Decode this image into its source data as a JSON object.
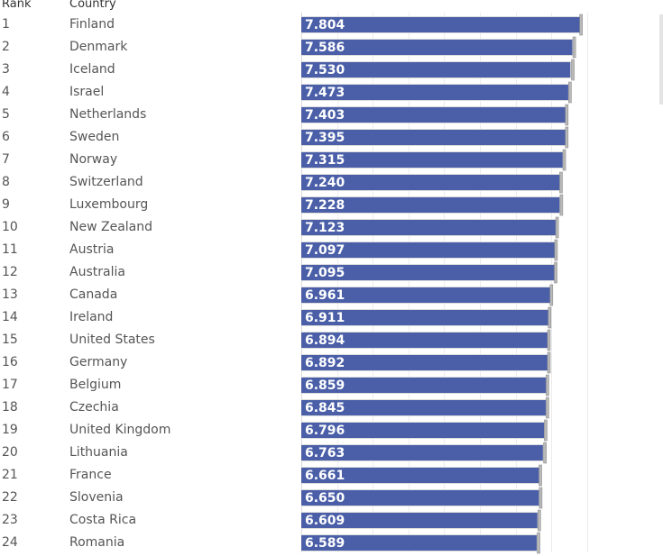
{
  "header": {
    "rank_label": "Rank",
    "country_label": "Country"
  },
  "chart_data": {
    "type": "bar",
    "orientation": "horizontal",
    "title": "",
    "xlabel": "",
    "ylabel": "Country",
    "xlim": [
      0,
      8
    ],
    "grid": true,
    "bar_color": "#4a5fa8",
    "interval_color": "#b9b9b9",
    "label_color": "#ffffff",
    "rows": [
      {
        "rank": "1",
        "country": "Finland",
        "value": 7.804,
        "label": "7.804",
        "upper": 7.87
      },
      {
        "rank": "2",
        "country": "Denmark",
        "value": 7.586,
        "label": "7.586",
        "upper": 7.68
      },
      {
        "rank": "3",
        "country": "Iceland",
        "value": 7.53,
        "label": "7.530",
        "upper": 7.64
      },
      {
        "rank": "4",
        "country": "Israel",
        "value": 7.473,
        "label": "7.473",
        "upper": 7.56
      },
      {
        "rank": "5",
        "country": "Netherlands",
        "value": 7.403,
        "label": "7.403",
        "upper": 7.47
      },
      {
        "rank": "6",
        "country": "Sweden",
        "value": 7.395,
        "label": "7.395",
        "upper": 7.47
      },
      {
        "rank": "7",
        "country": "Norway",
        "value": 7.315,
        "label": "7.315",
        "upper": 7.4
      },
      {
        "rank": "8",
        "country": "Switzerland",
        "value": 7.24,
        "label": "7.240",
        "upper": 7.31
      },
      {
        "rank": "9",
        "country": "Luxembourg",
        "value": 7.228,
        "label": "7.228",
        "upper": 7.32
      },
      {
        "rank": "10",
        "country": "New Zealand",
        "value": 7.123,
        "label": "7.123",
        "upper": 7.2
      },
      {
        "rank": "11",
        "country": "Austria",
        "value": 7.097,
        "label": "7.097",
        "upper": 7.17
      },
      {
        "rank": "12",
        "country": "Australia",
        "value": 7.095,
        "label": "7.095",
        "upper": 7.16
      },
      {
        "rank": "13",
        "country": "Canada",
        "value": 6.961,
        "label": "6.961",
        "upper": 7.04
      },
      {
        "rank": "14",
        "country": "Ireland",
        "value": 6.911,
        "label": "6.911",
        "upper": 6.99
      },
      {
        "rank": "15",
        "country": "United States",
        "value": 6.894,
        "label": "6.894",
        "upper": 6.97
      },
      {
        "rank": "16",
        "country": "Germany",
        "value": 6.892,
        "label": "6.892",
        "upper": 6.97
      },
      {
        "rank": "17",
        "country": "Belgium",
        "value": 6.859,
        "label": "6.859",
        "upper": 6.93
      },
      {
        "rank": "18",
        "country": "Czechia",
        "value": 6.845,
        "label": "6.845",
        "upper": 6.93
      },
      {
        "rank": "19",
        "country": "United Kingdom",
        "value": 6.796,
        "label": "6.796",
        "upper": 6.88
      },
      {
        "rank": "20",
        "country": "Lithuania",
        "value": 6.763,
        "label": "6.763",
        "upper": 6.86
      },
      {
        "rank": "21",
        "country": "France",
        "value": 6.661,
        "label": "6.661",
        "upper": 6.73
      },
      {
        "rank": "22",
        "country": "Slovenia",
        "value": 6.65,
        "label": "6.650",
        "upper": 6.74
      },
      {
        "rank": "23",
        "country": "Costa Rica",
        "value": 6.609,
        "label": "6.609",
        "upper": 6.7
      },
      {
        "rank": "24",
        "country": "Romania",
        "value": 6.589,
        "label": "6.589",
        "upper": 6.68
      }
    ]
  }
}
